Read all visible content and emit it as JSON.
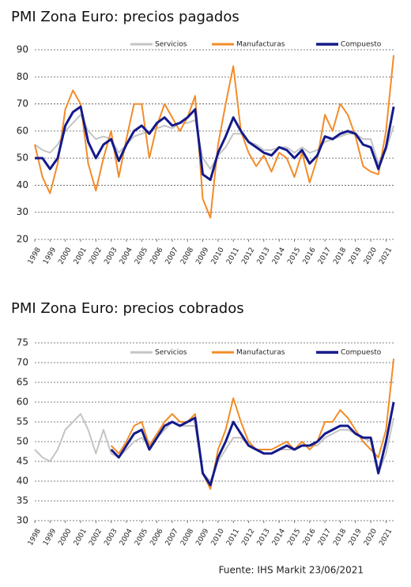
{
  "chart_data": [
    {
      "type": "line",
      "title": "PMI Zona Euro: precios pagados",
      "x": [
        1998,
        1998.5,
        1999,
        1999.5,
        2000,
        2000.5,
        2001,
        2001.5,
        2002,
        2002.5,
        2003,
        2003.5,
        2004,
        2004.5,
        2005,
        2005.5,
        2006,
        2006.5,
        2007,
        2007.5,
        2008,
        2008.5,
        2009,
        2009.5,
        2010,
        2010.5,
        2011,
        2011.5,
        2012,
        2012.5,
        2013,
        2013.5,
        2014,
        2014.5,
        2015,
        2015.5,
        2016,
        2016.5,
        2017,
        2017.5,
        2018,
        2018.5,
        2019,
        2019.5,
        2020,
        2020.5,
        2021,
        2021.5
      ],
      "series": [
        {
          "name": "Servicios",
          "color": "#c4c4c4",
          "values": [
            55,
            53,
            52,
            55,
            60,
            63,
            66,
            60,
            57,
            58,
            57,
            52,
            55,
            58,
            59,
            60,
            61,
            62,
            61,
            63,
            63,
            64,
            50,
            46,
            51,
            54,
            59,
            59,
            56,
            55,
            53,
            53,
            54,
            54,
            52,
            54,
            52,
            53,
            56,
            57,
            58,
            59,
            59,
            57,
            57,
            48,
            53,
            62
          ]
        },
        {
          "name": "Manufacturas",
          "color": "#f28c28",
          "values": [
            55,
            43,
            37,
            48,
            68,
            75,
            70,
            48,
            38,
            50,
            60,
            43,
            57,
            70,
            70,
            50,
            62,
            70,
            65,
            60,
            65,
            73,
            35,
            28,
            55,
            70,
            84,
            60,
            52,
            47,
            51,
            45,
            52,
            50,
            43,
            52,
            41,
            50,
            66,
            60,
            70,
            66,
            58,
            47,
            45,
            44,
            60,
            88
          ]
        },
        {
          "name": "Compuesto",
          "color": "#141a8a",
          "values": [
            50,
            50,
            46,
            50,
            62,
            67,
            69,
            56,
            50,
            55,
            57,
            49,
            55,
            60,
            62,
            59,
            63,
            65,
            62,
            63,
            65,
            68,
            44,
            42,
            52,
            58,
            65,
            60,
            56,
            54,
            52,
            51,
            54,
            53,
            50,
            53,
            48,
            51,
            58,
            57,
            59,
            60,
            59,
            55,
            54,
            46,
            54,
            69
          ]
        }
      ],
      "xlim": [
        1998,
        2021.6
      ],
      "xticks": [
        1998,
        1999,
        2000,
        2001,
        2002,
        2003,
        2004,
        2005,
        2006,
        2007,
        2008,
        2009,
        2010,
        2011,
        2012,
        2013,
        2014,
        2015,
        2016,
        2017,
        2018,
        2019,
        2020,
        2021
      ],
      "ylim": [
        20,
        90
      ],
      "yticks": [
        20,
        30,
        40,
        50,
        60,
        70,
        80,
        90
      ],
      "grid": true,
      "legend": "top"
    },
    {
      "type": "line",
      "title": "PMI Zona Euro: precios cobrados",
      "x": [
        1998,
        1998.5,
        1999,
        1999.5,
        2000,
        2000.5,
        2001,
        2001.5,
        2002,
        2002.5,
        2003,
        2003.5,
        2004,
        2004.5,
        2005,
        2005.5,
        2006,
        2006.5,
        2007,
        2007.5,
        2008,
        2008.5,
        2009,
        2009.5,
        2010,
        2010.5,
        2011,
        2011.5,
        2012,
        2012.5,
        2013,
        2013.5,
        2014,
        2014.5,
        2015,
        2015.5,
        2016,
        2016.5,
        2017,
        2017.5,
        2018,
        2018.5,
        2019,
        2019.5,
        2020,
        2020.5,
        2021,
        2021.5
      ],
      "series": [
        {
          "name": "Servicios",
          "color": "#c4c4c4",
          "values": [
            48,
            46,
            45,
            48,
            53,
            55,
            57,
            53,
            47,
            53,
            47,
            46,
            48,
            50,
            51,
            49,
            51,
            53,
            55,
            54,
            54,
            54,
            42,
            40,
            45,
            48,
            51,
            51,
            49,
            48,
            47,
            47,
            48,
            48,
            48,
            49,
            49,
            49,
            51,
            52,
            53,
            53,
            52,
            51,
            50,
            42,
            47,
            56
          ]
        },
        {
          "name": "Manufacturas",
          "color": "#f28c28",
          "values": [
            null,
            null,
            null,
            null,
            null,
            null,
            null,
            null,
            null,
            null,
            49,
            47,
            50,
            54,
            55,
            49,
            52,
            55,
            57,
            55,
            55,
            57,
            42,
            38,
            48,
            53,
            61,
            55,
            50,
            48,
            48,
            48,
            49,
            50,
            48,
            50,
            48,
            50,
            55,
            55,
            58,
            56,
            53,
            50,
            48,
            46,
            53,
            71
          ]
        },
        {
          "name": "Compuesto",
          "color": "#141a8a",
          "values": [
            null,
            null,
            null,
            null,
            null,
            null,
            null,
            null,
            null,
            null,
            48,
            46,
            49,
            52,
            53,
            48,
            51,
            54,
            55,
            54,
            55,
            56,
            42,
            39,
            46,
            50,
            55,
            52,
            49,
            48,
            47,
            47,
            48,
            49,
            48,
            49,
            49,
            50,
            52,
            53,
            54,
            54,
            52,
            51,
            51,
            42,
            50,
            60
          ]
        }
      ],
      "xlim": [
        1998,
        2021.6
      ],
      "xticks": [
        1998,
        1999,
        2000,
        2001,
        2002,
        2003,
        2004,
        2005,
        2006,
        2007,
        2008,
        2009,
        2010,
        2011,
        2012,
        2013,
        2014,
        2015,
        2016,
        2017,
        2018,
        2019,
        2020,
        2021
      ],
      "ylim": [
        30,
        75
      ],
      "yticks": [
        30,
        35,
        40,
        45,
        50,
        55,
        60,
        65,
        70,
        75
      ],
      "grid": true,
      "legend": "top"
    }
  ],
  "source": "Fuente: IHS Markit 23/06/2021"
}
